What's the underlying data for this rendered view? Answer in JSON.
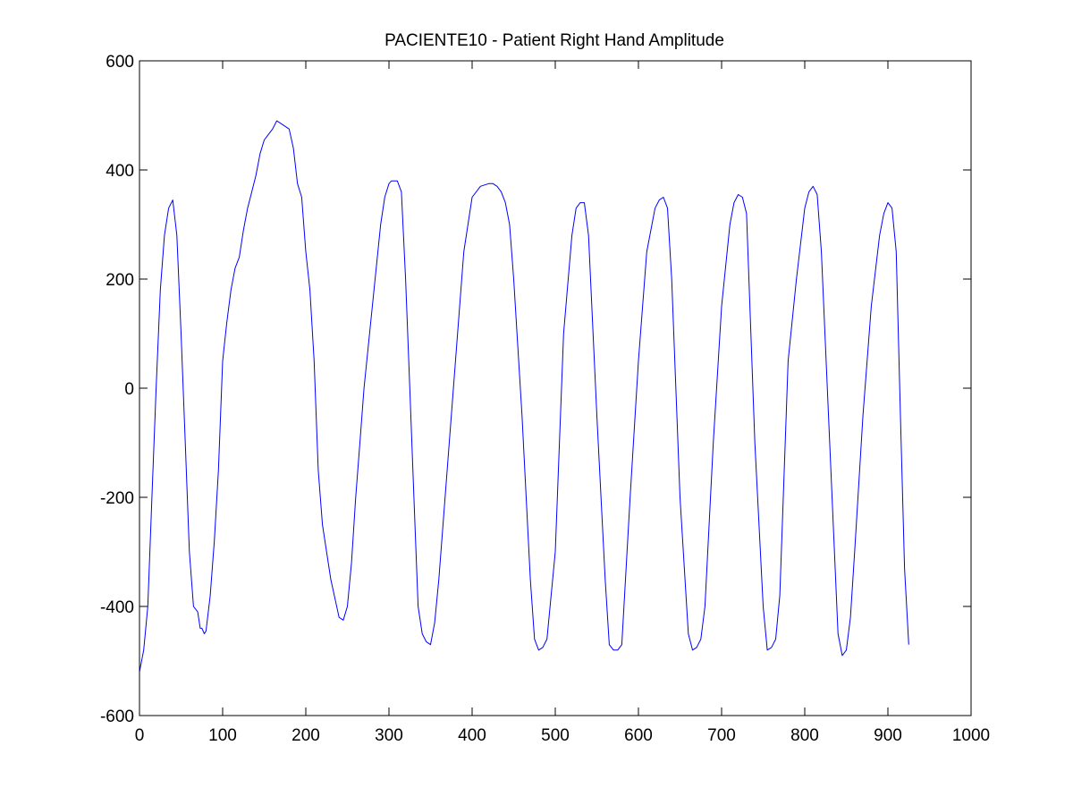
{
  "chart_data": {
    "type": "line",
    "title": "PACIENTE10 - Patient Right Hand Amplitude",
    "xlabel": "",
    "ylabel": "",
    "xlim": [
      0,
      1000
    ],
    "ylim": [
      -600,
      600
    ],
    "xticks": [
      0,
      100,
      200,
      300,
      400,
      500,
      600,
      700,
      800,
      900,
      1000
    ],
    "yticks": [
      -600,
      -400,
      -200,
      0,
      200,
      400,
      600
    ],
    "grid": false,
    "legend": "none",
    "line_color": "#0000ff",
    "series": [
      {
        "x": [
          0,
          5,
          10,
          15,
          20,
          25,
          30,
          35,
          40,
          45,
          50,
          55,
          60,
          65,
          70,
          73,
          75,
          78,
          80,
          85,
          90,
          95,
          100,
          105,
          110,
          115,
          120,
          125,
          130,
          135,
          140,
          145,
          150,
          155,
          160,
          165,
          170,
          175,
          180,
          185,
          190,
          195,
          200,
          205,
          210,
          215,
          220,
          230,
          240,
          245,
          250,
          255,
          260,
          265,
          270,
          280,
          290,
          295,
          300,
          303,
          305,
          310,
          315,
          320,
          325,
          330,
          335,
          340,
          345,
          350,
          355,
          360,
          370,
          380,
          390,
          400,
          410,
          420,
          425,
          430,
          435,
          440,
          445,
          450,
          460,
          470,
          475,
          480,
          485,
          490,
          500,
          510,
          520,
          525,
          530,
          535,
          540,
          550,
          560,
          565,
          570,
          575,
          580,
          590,
          600,
          610,
          620,
          625,
          630,
          635,
          640,
          650,
          660,
          665,
          670,
          675,
          680,
          690,
          700,
          710,
          715,
          720,
          725,
          730,
          740,
          750,
          755,
          760,
          765,
          770,
          780,
          790,
          800,
          805,
          810,
          815,
          820,
          830,
          840,
          845,
          850,
          855,
          860,
          870,
          880,
          890,
          895,
          900,
          905,
          910,
          915,
          920,
          925
        ],
        "y": [
          -520,
          -480,
          -400,
          -200,
          0,
          180,
          280,
          330,
          345,
          280,
          100,
          -100,
          -300,
          -400,
          -410,
          -440,
          -440,
          -450,
          -445,
          -380,
          -280,
          -150,
          50,
          120,
          180,
          220,
          240,
          290,
          330,
          360,
          390,
          430,
          455,
          465,
          475,
          490,
          485,
          480,
          475,
          440,
          375,
          350,
          250,
          180,
          50,
          -150,
          -250,
          -350,
          -420,
          -425,
          -400,
          -320,
          -200,
          -100,
          0,
          150,
          300,
          350,
          375,
          380,
          380,
          380,
          360,
          200,
          0,
          -200,
          -400,
          -450,
          -465,
          -470,
          -430,
          -350,
          -150,
          50,
          250,
          350,
          370,
          375,
          375,
          370,
          360,
          340,
          300,
          200,
          -50,
          -350,
          -460,
          -480,
          -475,
          -460,
          -300,
          100,
          280,
          330,
          340,
          340,
          280,
          -50,
          -350,
          -470,
          -480,
          -480,
          -470,
          -200,
          50,
          250,
          330,
          345,
          350,
          330,
          200,
          -200,
          -450,
          -480,
          -475,
          -460,
          -400,
          -100,
          150,
          300,
          340,
          355,
          350,
          320,
          -100,
          -400,
          -480,
          -475,
          -460,
          -380,
          50,
          200,
          330,
          360,
          370,
          355,
          250,
          -100,
          -450,
          -490,
          -480,
          -420,
          -300,
          -50,
          150,
          280,
          320,
          340,
          330,
          250,
          -50,
          -330,
          -470
        ]
      }
    ]
  }
}
